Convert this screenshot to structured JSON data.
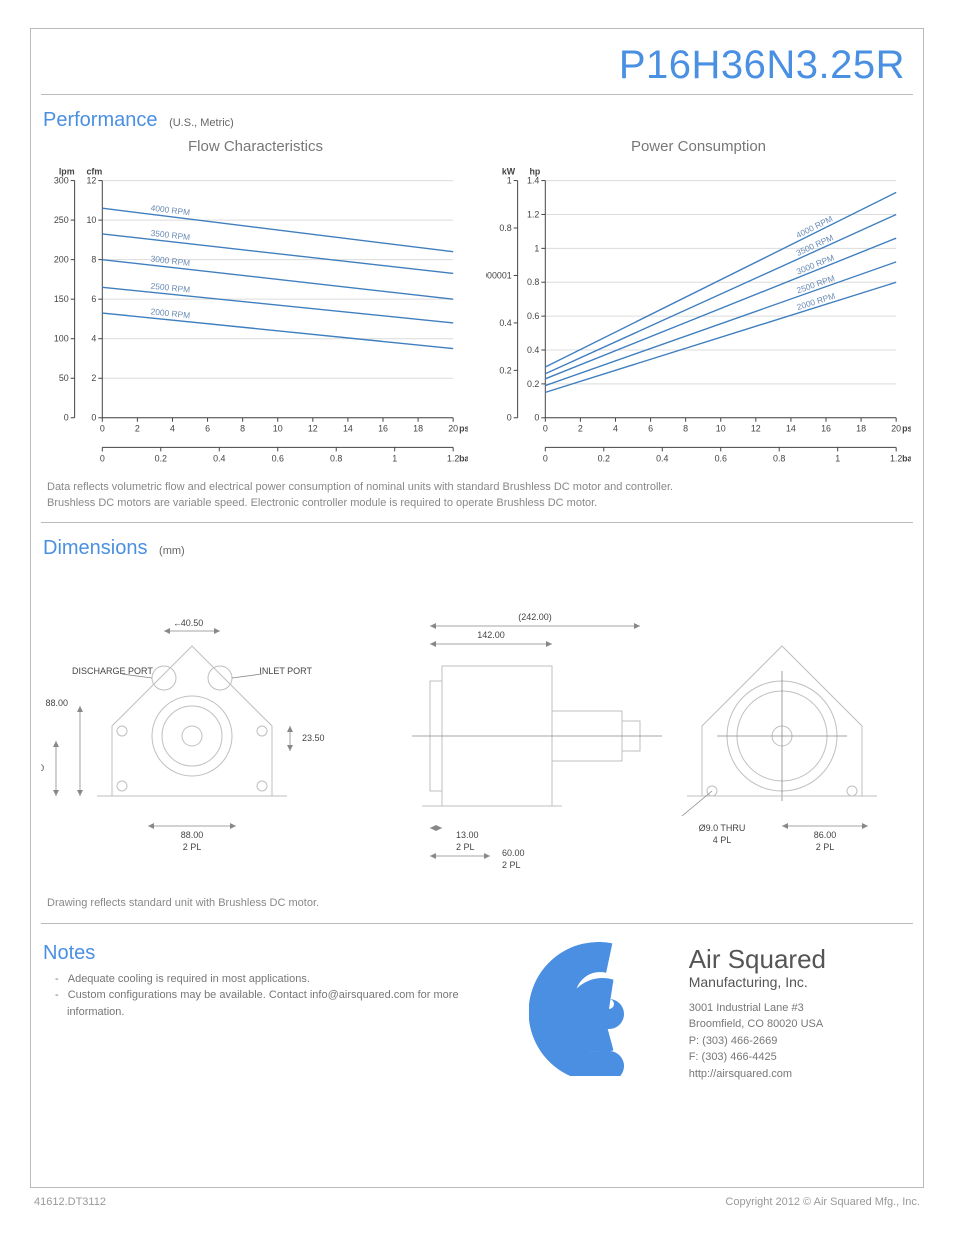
{
  "doc_number": "41612.DT3112",
  "copyright": "Copyright 2012 © Air Squared Mfg., Inc.",
  "title": "P16H36N3.25R",
  "performance": {
    "heading": "Performance",
    "units": "(U.S., Metric)",
    "flow_chart": {
      "title": "Flow Characteristics",
      "type": "line",
      "x_psig": {
        "min": 0,
        "max": 20,
        "step": 2,
        "label": "psig"
      },
      "x_bar": {
        "min": 0,
        "max": 1.2,
        "step": 0.2,
        "label": "bar"
      },
      "y_lpm": {
        "min": 0,
        "max": 300,
        "step": 50,
        "label": "lpm"
      },
      "y_cfm": {
        "min": 0,
        "max": 12,
        "step": 2,
        "label": "cfm"
      },
      "line_color": "#3f7fbf",
      "line_width": 1.4,
      "grid_color": "#dcdcdc",
      "axis_color": "#444",
      "label_fontsize": 9,
      "series": [
        {
          "label": "4000 RPM",
          "cfm_at_0": 10.6,
          "cfm_at_20": 8.4
        },
        {
          "label": "3500 RPM",
          "cfm_at_0": 9.3,
          "cfm_at_20": 7.3
        },
        {
          "label": "3000 RPM",
          "cfm_at_0": 8.0,
          "cfm_at_20": 6.0
        },
        {
          "label": "2500 RPM",
          "cfm_at_0": 6.6,
          "cfm_at_20": 4.8
        },
        {
          "label": "2000 RPM",
          "cfm_at_0": 5.3,
          "cfm_at_20": 3.5
        }
      ]
    },
    "power_chart": {
      "title": "Power Consumption",
      "type": "line",
      "x_psig": {
        "min": 0,
        "max": 20,
        "step": 2,
        "label": "psig"
      },
      "x_bar": {
        "min": 0,
        "max": 1.2,
        "step": 0.2,
        "label": "bar"
      },
      "y_kw": {
        "min": 0,
        "max": 1.0,
        "step": 0.2,
        "label": "kW"
      },
      "y_hp": {
        "min": 0,
        "max": 1.4,
        "step": 0.2,
        "label": "hp"
      },
      "line_color": "#3f7fbf",
      "line_width": 1.4,
      "grid_color": "#dcdcdc",
      "axis_color": "#444",
      "label_fontsize": 9,
      "series": [
        {
          "label": "4000 RPM",
          "hp_at_0": 0.3,
          "hp_at_20": 1.33
        },
        {
          "label": "3500 RPM",
          "hp_at_0": 0.26,
          "hp_at_20": 1.2
        },
        {
          "label": "3000 RPM",
          "hp_at_0": 0.23,
          "hp_at_20": 1.06
        },
        {
          "label": "2500 RPM",
          "hp_at_0": 0.19,
          "hp_at_20": 0.92
        },
        {
          "label": "2000 RPM",
          "hp_at_0": 0.15,
          "hp_at_20": 0.8
        }
      ]
    },
    "note_line1": "Data reflects volumetric flow and electrical power consumption of nominal units with standard Brushless DC motor and controller.",
    "note_line2": "Brushless DC motors are variable speed. Electronic controller module is required to operate Brushless DC motor."
  },
  "dimensions": {
    "heading": "Dimensions",
    "units": "(mm)",
    "front": {
      "width_callout": "40.50",
      "discharge_label": "DISCHARGE PORT",
      "inlet_label": "INLET PORT",
      "dim_88v": "88.00",
      "dim_23_5": "23.50",
      "dim_77": "77.00",
      "dim_88h": "88.00",
      "dim_88h_sub": "2 PL"
    },
    "side": {
      "overall": "(242.00)",
      "body": "142.00",
      "dim_13": "13.00",
      "dim_13_sub": "2 PL",
      "dim_60": "60.00",
      "dim_60_sub": "2 PL"
    },
    "rear": {
      "hole": "Ø9.0 THRU",
      "hole_sub": "4 PL",
      "dim_86": "86.00",
      "dim_86_sub": "2 PL"
    },
    "dim_line_color": "#888",
    "drawing_line_color": "#bfbfbf",
    "label_fontsize": 9,
    "note": "Drawing reflects standard unit with Brushless DC motor."
  },
  "notes": {
    "heading": "Notes",
    "items": [
      "Adequate cooling is required in most applications.",
      "Custom configurations may be available. Contact info@airsquared.com for more information."
    ]
  },
  "company": {
    "name": "Air Squared",
    "sub": "Manufacturing, Inc.",
    "addr1": "3001 Industrial Lane #3",
    "addr2": "Broomfield, CO 80020 USA",
    "phone": "P: (303) 466-2669",
    "fax": "F: (303) 466-4425",
    "url": "http://airsquared.com",
    "logo_color": "#4a8fe2"
  }
}
